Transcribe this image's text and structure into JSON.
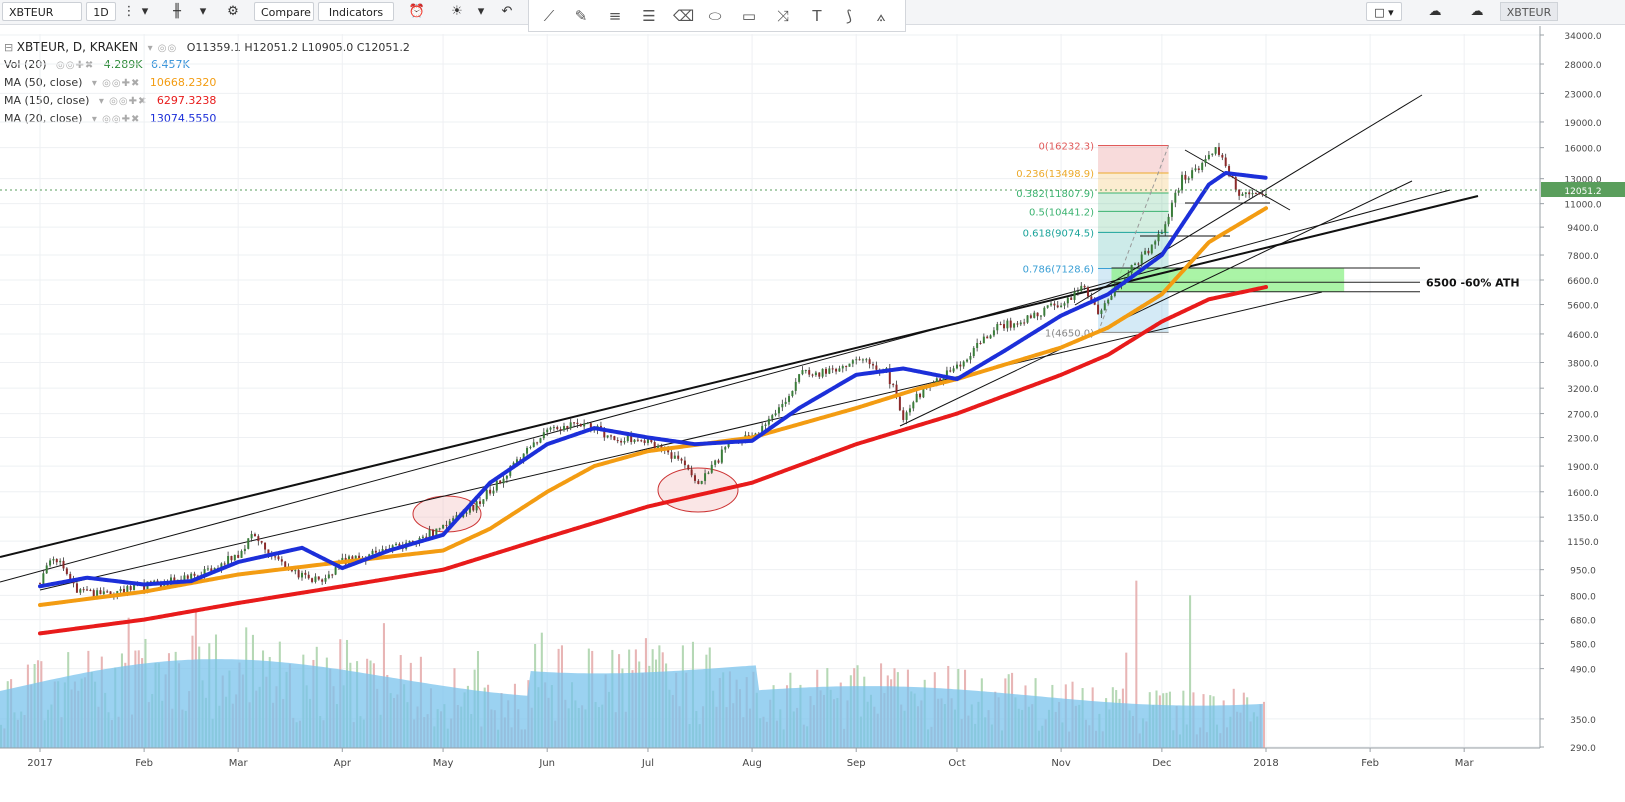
{
  "toolbar": {
    "symbol": "XBTEUR",
    "interval": "1D",
    "compare_label": "Compare",
    "indicators_label": "Indicators",
    "right_symbol": "XBTEUR"
  },
  "legend": {
    "symbol_line": "XBTEUR, D, KRAKEN",
    "ohlc": "O11359.1  H12051.2  L10905.0  C12051.2",
    "vol_label": "Vol (20)",
    "vol_value1": "4.289K",
    "vol_value2": "6.457K",
    "ma50_label": "MA (50, close)",
    "ma50_value": "10668.2320",
    "ma150_label": "MA (150, close)",
    "ma150_value": "6297.3238",
    "ma20_label": "MA (20, close)",
    "ma20_value": "13074.5550"
  },
  "colors": {
    "ma50": "#f39c12",
    "ma150": "#e81b1b",
    "ma20": "#1c2fd9",
    "volume_area": "#79c3ec",
    "up_volume": "#b5d8b5",
    "down_volume": "#e8b5b5",
    "price_tag": "#5a9e5c",
    "fib_red": "#e05a5a",
    "fib_orange": "#ecaa2b",
    "fib_green": "#3cb371",
    "fib_teal": "#1aa39a",
    "fib_blue": "#3a9fd5",
    "fib_gray": "#888888",
    "support_zone": "#8df088"
  },
  "chart_data": {
    "type": "line",
    "title": "XBTEUR, D, KRAKEN",
    "scale": "log",
    "ylim": [
      290,
      35500
    ],
    "y_ticks": [
      34000,
      28000,
      23000,
      19000,
      16000,
      13000,
      11000,
      9400,
      7800,
      6600,
      5600,
      4600,
      3800,
      3200,
      2700,
      2300,
      1900,
      1600,
      1350,
      1150,
      950,
      800,
      680,
      580,
      490,
      350,
      290
    ],
    "x_ticks": [
      "2017",
      "Feb",
      "Mar",
      "Apr",
      "May",
      "Jun",
      "Jul",
      "Aug",
      "Sep",
      "Oct",
      "Nov",
      "Dec",
      "2018",
      "Feb",
      "Mar"
    ],
    "last_price": "12051.2",
    "annotation": "6500 -60% ATH",
    "fib_levels": [
      {
        "label": "0(16232.3)",
        "value": 16232.3
      },
      {
        "label": "0.236(13498.9)",
        "value": 13498.9
      },
      {
        "label": "0.382(11807.9)",
        "value": 11807.9
      },
      {
        "label": "0.5(10441.2)",
        "value": 10441.2
      },
      {
        "label": "0.618(9074.5)",
        "value": 9074.5
      },
      {
        "label": "0.786(7128.6)",
        "value": 7128.6
      },
      {
        "label": "1(4650.0)",
        "value": 4650.0
      }
    ],
    "series": [
      {
        "name": "XBTEUR",
        "x": [
          "2017-01-01",
          "2017-01-05",
          "2017-01-12",
          "2017-01-20",
          "2017-02-01",
          "2017-02-15",
          "2017-03-01",
          "2017-03-05",
          "2017-03-18",
          "2017-03-25",
          "2017-04-01",
          "2017-04-15",
          "2017-05-01",
          "2017-05-10",
          "2017-05-20",
          "2017-05-25",
          "2017-06-01",
          "2017-06-12",
          "2017-06-20",
          "2017-07-01",
          "2017-07-10",
          "2017-07-16",
          "2017-07-25",
          "2017-08-01",
          "2017-08-10",
          "2017-08-15",
          "2017-08-25",
          "2017-09-01",
          "2017-09-10",
          "2017-09-15",
          "2017-09-20",
          "2017-10-01",
          "2017-10-12",
          "2017-10-20",
          "2017-11-01",
          "2017-11-08",
          "2017-11-12",
          "2017-11-20",
          "2017-11-26",
          "2017-12-01",
          "2017-12-07",
          "2017-12-12",
          "2017-12-17",
          "2017-12-22",
          "2017-12-25",
          "2018-01-01"
        ],
        "values": [
          870,
          1050,
          820,
          800,
          850,
          900,
          1050,
          1200,
          930,
          880,
          1000,
          1080,
          1250,
          1450,
          1800,
          2100,
          2400,
          2550,
          2300,
          2250,
          2000,
          1650,
          2200,
          2300,
          2800,
          3500,
          3600,
          3900,
          3600,
          2650,
          3100,
          3700,
          4800,
          5000,
          5700,
          6300,
          5300,
          6800,
          7800,
          9200,
          13000,
          14000,
          16000,
          12800,
          11500,
          12051.2
        ]
      },
      {
        "name": "MA (20, close)",
        "x": [
          "2017-01-01",
          "2017-01-15",
          "2017-02-01",
          "2017-02-15",
          "2017-03-01",
          "2017-03-20",
          "2017-04-01",
          "2017-04-15",
          "2017-05-01",
          "2017-05-15",
          "2017-06-01",
          "2017-06-15",
          "2017-07-01",
          "2017-07-15",
          "2017-08-01",
          "2017-08-15",
          "2017-09-01",
          "2017-09-15",
          "2017-10-01",
          "2017-10-15",
          "2017-11-01",
          "2017-11-15",
          "2017-12-01",
          "2017-12-15",
          "2017-12-20",
          "2018-01-01"
        ],
        "values": [
          850,
          900,
          860,
          880,
          1000,
          1100,
          960,
          1080,
          1200,
          1700,
          2200,
          2450,
          2300,
          2200,
          2250,
          2800,
          3500,
          3650,
          3400,
          4100,
          5200,
          6000,
          7800,
          12500,
          13500,
          13074.6
        ]
      },
      {
        "name": "MA (50, close)",
        "x": [
          "2017-01-01",
          "2017-02-01",
          "2017-03-01",
          "2017-04-01",
          "2017-05-01",
          "2017-05-15",
          "2017-06-01",
          "2017-06-15",
          "2017-07-01",
          "2017-08-01",
          "2017-09-01",
          "2017-09-20",
          "2017-10-01",
          "2017-11-01",
          "2017-11-15",
          "2017-12-01",
          "2017-12-15",
          "2018-01-01"
        ],
        "values": [
          750,
          820,
          920,
          1000,
          1080,
          1250,
          1600,
          1900,
          2100,
          2300,
          2800,
          3200,
          3400,
          4200,
          4800,
          6000,
          8500,
          10668.2
        ]
      },
      {
        "name": "MA (150, close)",
        "x": [
          "2017-01-01",
          "2017-02-01",
          "2017-03-01",
          "2017-04-01",
          "2017-05-01",
          "2017-06-01",
          "2017-07-01",
          "2017-08-01",
          "2017-09-01",
          "2017-10-01",
          "2017-11-01",
          "2017-11-15",
          "2017-12-01",
          "2017-12-15",
          "2018-01-01"
        ],
        "values": [
          620,
          680,
          760,
          850,
          950,
          1180,
          1450,
          1700,
          2200,
          2700,
          3500,
          4000,
          5000,
          5800,
          6297.3
        ]
      }
    ]
  }
}
